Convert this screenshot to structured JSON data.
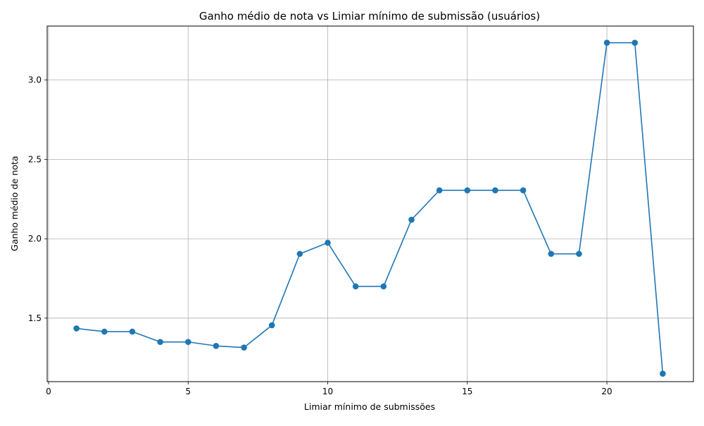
{
  "chart_data": {
    "type": "line",
    "title": "Ganho médio de nota vs Limiar mínimo de submissão (usuários)",
    "xlabel": "Limiar mínimo de submissões",
    "ylabel": "Ganho médio de nota",
    "xlim": [
      -0.05,
      23.1
    ],
    "ylim": [
      1.1,
      3.34
    ],
    "x_ticks": [
      0,
      5,
      10,
      15,
      20
    ],
    "y_ticks": [
      1.5,
      2.0,
      2.5,
      3.0
    ],
    "x_tick_labels": [
      "0",
      "5",
      "10",
      "15",
      "20"
    ],
    "y_tick_labels": [
      "1.5",
      "2.0",
      "2.5",
      "3.0"
    ],
    "grid": true,
    "series": [
      {
        "color": "#1f77b4",
        "marker": "circle",
        "x": [
          1,
          2,
          3,
          4,
          5,
          6,
          7,
          8,
          9,
          10,
          11,
          12,
          13,
          14,
          15,
          16,
          17,
          18,
          19,
          20,
          21,
          22
        ],
        "y": [
          1.435,
          1.415,
          1.415,
          1.35,
          1.35,
          1.325,
          1.315,
          1.455,
          1.905,
          1.975,
          1.7,
          1.7,
          2.12,
          2.305,
          2.305,
          2.305,
          2.305,
          1.905,
          1.905,
          3.235,
          3.235,
          1.15
        ]
      }
    ]
  }
}
